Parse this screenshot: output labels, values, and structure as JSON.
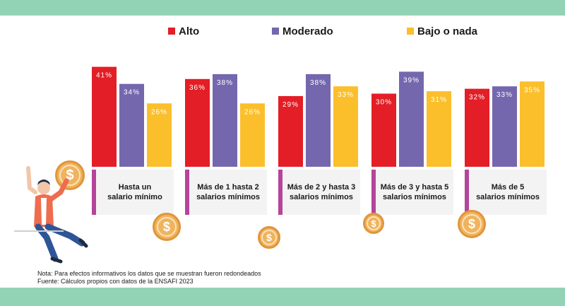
{
  "legend": [
    {
      "label": "Alto",
      "color": "#e31e26"
    },
    {
      "label": "Moderado",
      "color": "#7567ae"
    },
    {
      "label": "Bajo o nada",
      "color": "#fbbf2c"
    }
  ],
  "chart_data": {
    "type": "bar",
    "categories": [
      "Hasta un salario mínimo",
      "Más de 1 hasta 2 salarios mínimos",
      "Más de 2 y hasta 3 salarios mínimos",
      "Más de 3 y hasta 5 salarios mínimos",
      "Más de 5 salarios mínimos"
    ],
    "series": [
      {
        "name": "Alto",
        "color": "#e31e26",
        "values": [
          41,
          36,
          29,
          30,
          32
        ]
      },
      {
        "name": "Moderado",
        "color": "#7567ae",
        "values": [
          34,
          38,
          38,
          39,
          33
        ]
      },
      {
        "name": "Bajo o nada",
        "color": "#fbbf2c",
        "values": [
          26,
          26,
          33,
          31,
          35
        ]
      }
    ],
    "value_labels": [
      [
        "41%",
        "34%",
        "26%"
      ],
      [
        "36%",
        "38%",
        "26%"
      ],
      [
        "29%",
        "38%",
        "33%"
      ],
      [
        "30%",
        "39%",
        "31%"
      ],
      [
        "32%",
        "33%",
        "35%"
      ]
    ],
    "unit": "%",
    "legend_position": "top",
    "grid": false
  },
  "categories_display": [
    {
      "line1": "Hasta un",
      "line2": "salario mínimo"
    },
    {
      "line1": "Más de 1 hasta 2",
      "line2": "salarios mínimos"
    },
    {
      "line1": "Más de 2 y hasta 3",
      "line2": "salarios mínimos"
    },
    {
      "line1": "Más de 3 y hasta 5",
      "line2": "salarios mínimos"
    },
    {
      "line1": "Más de 5",
      "line2": "salarios mínimos"
    }
  ],
  "coin_symbol": "$",
  "notes": {
    "nota": "Nota: Para efectos informativos los datos que se muestran fueron redondeados",
    "fuente": "Fuente: Cálculos propios con datos de la ENSAFI 2023"
  },
  "icons": {
    "coin": "dollar-coin-icon",
    "person": "person-holding-coin-illustration"
  }
}
